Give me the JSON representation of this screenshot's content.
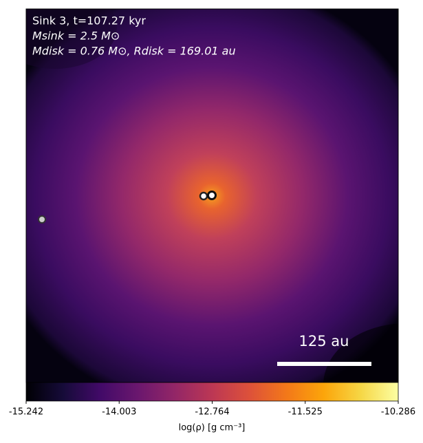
{
  "chart_data": {
    "type": "image",
    "annotations": [
      "Sink 3, t=107.27 kyr",
      "Msink = 2.5 M⊙",
      "Mdisk = 0.76 M⊙, Rdisk = 169.01 au"
    ],
    "scale_bar": "125 au",
    "colorbar": {
      "label": "log(ρ) [g cm⁻³]",
      "lim": [
        -15.242,
        -10.286
      ],
      "ticks": [
        -15.242,
        -14.003,
        -12.764,
        -11.525,
        -10.286
      ],
      "colormap": "inferno"
    }
  }
}
